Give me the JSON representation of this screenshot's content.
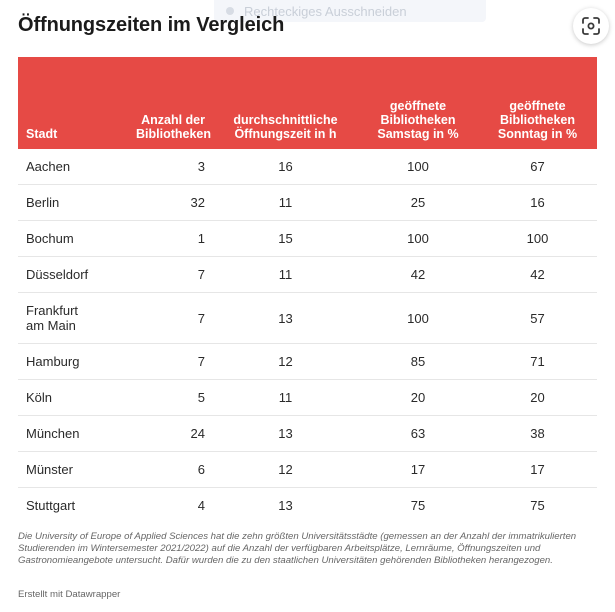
{
  "title": "Öffnungszeiten im Vergleich",
  "ghost_text": "Rechteckiges Ausschneiden",
  "table": {
    "headers": [
      "Stadt",
      "Anzahl der Bibliotheken",
      "durchschnittliche Öffnungszeit in h",
      "geöffnete Bibliotheken Samstag in %",
      "geöffnete Bibliotheken Sonntag in %"
    ],
    "rows": [
      [
        "Aachen",
        "3",
        "16",
        "100",
        "67"
      ],
      [
        "Berlin",
        "32",
        "11",
        "25",
        "16"
      ],
      [
        "Bochum",
        "1",
        "15",
        "100",
        "100"
      ],
      [
        "Düsseldorf",
        "7",
        "11",
        "42",
        "42"
      ],
      [
        "Frankfurt am Main",
        "7",
        "13",
        "100",
        "57"
      ],
      [
        "Hamburg",
        "7",
        "12",
        "85",
        "71"
      ],
      [
        "Köln",
        "5",
        "11",
        "20",
        "20"
      ],
      [
        "München",
        "24",
        "13",
        "63",
        "38"
      ],
      [
        "Münster",
        "6",
        "12",
        "17",
        "17"
      ],
      [
        "Stuttgart",
        "4",
        "13",
        "75",
        "75"
      ]
    ]
  },
  "footnote": "Die University of Europe of Applied Sciences hat die zehn größten Universitätsstädte (gemessen an der Anzahl der immatrikulierten Studierenden im Wintersemester 2021/2022) auf die Anzahl der verfügbaren Arbeitsplätze, Lernräume, Öffnungszeiten und Gastronomieangebote untersucht. Dafür wurden die zu den staatlichen Universitäten gehörenden Bibliotheken herangezogen.",
  "credit": "Erstellt mit Datawrapper",
  "colors": {
    "header_bg": "#e64a45",
    "header_text": "#ffffff",
    "row_border": "#e6e6e6"
  },
  "icons": {
    "scan": "scan-icon"
  }
}
